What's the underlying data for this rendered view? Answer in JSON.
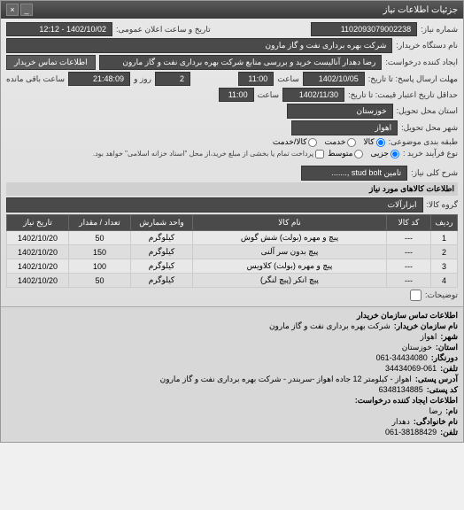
{
  "window": {
    "title": "جزئیات اطلاعات نیاز"
  },
  "form": {
    "request_number_label": "شماره نیاز:",
    "request_number": "1102093079002238",
    "announce_datetime_label": "تاریخ و ساعت اعلان عمومی:",
    "announce_datetime": "1402/10/02 - 12:12",
    "buyer_org_label": "نام دستگاه خریدار:",
    "buyer_org": "شرکت بهره برداری نفت و گاز مارون",
    "creator_label": "ایجاد کننده درخواست:",
    "creator": "رضا دهدار آنالیست خرید و بررسی منابع شرکت بهره برداری نفت و گاز مارون",
    "contact_btn": "اطلاعات تماس خریدار",
    "deadline_label": "مهلت ارسال پاسخ: تا تاریخ:",
    "deadline_date": "1402/10/05",
    "time_label": "ساعت",
    "deadline_time": "11:00",
    "days_label": "روز و",
    "days_remaining": "2",
    "time_remaining": "21:48:09",
    "remaining_label": "ساعت باقی مانده",
    "validity_label": "حداقل تاریخ اعتبار قیمت: تا تاریخ:",
    "validity_date": "1402/11/30",
    "validity_time": "11:00",
    "province_label": "استان محل تحویل:",
    "province": "خوزستان",
    "city_label": "شهر محل تحویل:",
    "city": "اهواز",
    "category_label": "طبقه بندی موضوعی:",
    "cat_goods": "کالا",
    "cat_service": "خدمت",
    "cat_goods_service": "کالا/خدمت",
    "process_label": "نوع فرآیند خرید :",
    "proc_partial": "جزیی",
    "proc_medium": "متوسط",
    "process_note": "پرداخت تمام یا بخشی از مبلغ خرید،از محل \"اسناد خزانه اسلامی\" خواهد بود.",
    "need_title_label": "شرح کلی نیاز:",
    "need_title": "تامین stud bolt ,.......",
    "items_header": "اطلاعات کالاهای مورد نیاز",
    "group_label": "گروه کالا:",
    "group_value": "ابزارآلات",
    "description_checkbox": "توضیحات:"
  },
  "table": {
    "columns": [
      "ردیف",
      "کد کالا",
      "نام کالا",
      "واحد شمارش",
      "تعداد / مقدار",
      "تاریخ نیاز"
    ],
    "rows": [
      [
        "1",
        "---",
        "پیچ و مهره (بولت) شش گوش",
        "کیلوگرم",
        "50",
        "1402/10/20"
      ],
      [
        "2",
        "---",
        "پیچ بدون سر آلنی",
        "کیلوگرم",
        "150",
        "1402/10/20"
      ],
      [
        "3",
        "---",
        "پیچ و مهره (بولت) کلاویس",
        "کیلوگرم",
        "100",
        "1402/10/20"
      ],
      [
        "4",
        "---",
        "پیچ انکر (پیچ لنگر)",
        "کیلوگرم",
        "50",
        "1402/10/20"
      ]
    ],
    "col_widths": [
      "30px",
      "50px",
      "auto",
      "70px",
      "70px",
      "70px"
    ]
  },
  "footer": {
    "header": "اطلاعات تماس سازمان خریدار",
    "org_label": "نام سازمان خریدار:",
    "org": "شرکت بهره برداری نفت و گاز مارون",
    "city_label": "شهر:",
    "city": "اهواز",
    "province_label": "استان:",
    "province": "خوزستان",
    "fax_label": "دورنگار:",
    "fax": "061-34434080",
    "phone_label": "تلفن:",
    "phone": "34434069-061",
    "address_label": "آدرس پستی:",
    "address": "اهواز - کیلومتر 12 جاده اهواز -سربندر - شرکت بهره برداری نفت و گاز مارون",
    "postal_label": "کد پستی:",
    "postal": "6348134885",
    "creator_header": "اطلاعات ایجاد کننده درخواست:",
    "name_label": "نام:",
    "name": "رضا",
    "surname_label": "نام خانوادگی:",
    "surname": "دهدار",
    "creator_phone_label": "تلفن:",
    "creator_phone": "061-38188429"
  }
}
